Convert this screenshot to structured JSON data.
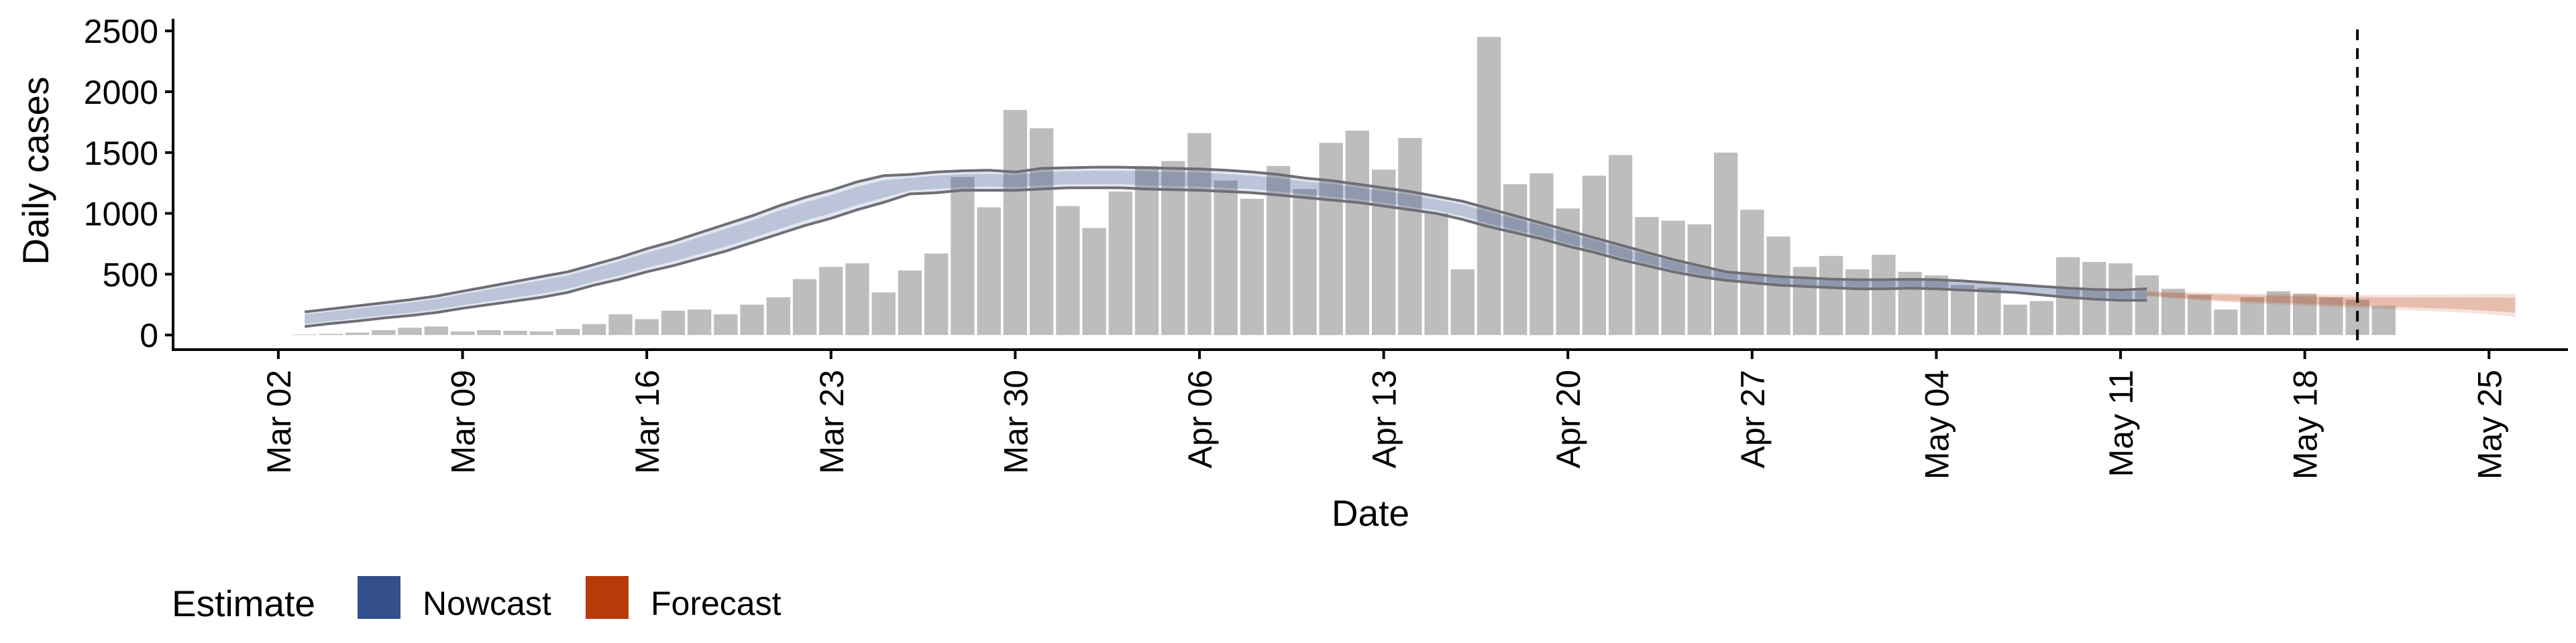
{
  "chart_data": {
    "type": "bar",
    "xlabel": "Date",
    "ylabel": "Daily cases",
    "xlim": [
      "2020-02-27",
      "2020-05-28"
    ],
    "ylim": [
      -120,
      2600
    ],
    "yticks": [
      0,
      500,
      1000,
      1500,
      2000,
      2500
    ],
    "xticks": [
      {
        "date": "2020-03-02",
        "label": "Mar 02"
      },
      {
        "date": "2020-03-09",
        "label": "Mar 09"
      },
      {
        "date": "2020-03-16",
        "label": "Mar 16"
      },
      {
        "date": "2020-03-23",
        "label": "Mar 23"
      },
      {
        "date": "2020-03-30",
        "label": "Mar 30"
      },
      {
        "date": "2020-04-06",
        "label": "Apr 06"
      },
      {
        "date": "2020-04-13",
        "label": "Apr 13"
      },
      {
        "date": "2020-04-20",
        "label": "Apr 20"
      },
      {
        "date": "2020-04-27",
        "label": "Apr 27"
      },
      {
        "date": "2020-05-04",
        "label": "May 04"
      },
      {
        "date": "2020-05-11",
        "label": "May 11"
      },
      {
        "date": "2020-05-18",
        "label": "May 18"
      },
      {
        "date": "2020-05-25",
        "label": "May 25"
      }
    ],
    "grid": false,
    "bars": {
      "start_date": "2020-03-03",
      "color": "#bdbdbd",
      "values": [
        5,
        10,
        20,
        40,
        60,
        70,
        30,
        40,
        35,
        30,
        50,
        90,
        170,
        130,
        200,
        210,
        170,
        250,
        310,
        460,
        560,
        590,
        350,
        530,
        670,
        1300,
        1050,
        1850,
        1700,
        1060,
        880,
        1180,
        1390,
        1430,
        1660,
        1270,
        1120,
        1390,
        1200,
        1580,
        1680,
        1360,
        1620,
        1000,
        540,
        2450,
        1240,
        1330,
        1040,
        1310,
        1480,
        970,
        940,
        910,
        1500,
        1030,
        810,
        560,
        650,
        540,
        660,
        520,
        490,
        410,
        390,
        250,
        280,
        640,
        600,
        590,
        490,
        380,
        330,
        210,
        310,
        360,
        340,
        310,
        290,
        240
      ]
    },
    "series": [
      {
        "name": "Nowcast",
        "color": "#334f8c",
        "start_date": "2020-03-03",
        "lower": [
          70,
          95,
          115,
          140,
          160,
          185,
          220,
          250,
          280,
          310,
          350,
          410,
          460,
          520,
          570,
          630,
          690,
          760,
          830,
          900,
          960,
          1030,
          1090,
          1160,
          1170,
          1190,
          1190,
          1190,
          1200,
          1210,
          1210,
          1210,
          1200,
          1195,
          1190,
          1180,
          1170,
          1150,
          1130,
          1110,
          1090,
          1060,
          1030,
          1000,
          950,
          890,
          840,
          790,
          730,
          680,
          620,
          570,
          520,
          480,
          450,
          430,
          410,
          400,
          390,
          380,
          380,
          385,
          380,
          370,
          360,
          350,
          330,
          310,
          295,
          285,
          285
        ],
        "upper": [
          190,
          215,
          240,
          265,
          290,
          320,
          360,
          400,
          440,
          480,
          520,
          580,
          640,
          710,
          770,
          840,
          910,
          980,
          1060,
          1130,
          1190,
          1260,
          1310,
          1320,
          1340,
          1350,
          1355,
          1340,
          1370,
          1375,
          1380,
          1380,
          1375,
          1370,
          1365,
          1355,
          1340,
          1320,
          1290,
          1270,
          1240,
          1210,
          1180,
          1140,
          1100,
          1040,
          980,
          920,
          860,
          800,
          740,
          680,
          620,
          570,
          520,
          500,
          480,
          470,
          460,
          455,
          455,
          458,
          455,
          445,
          430,
          415,
          400,
          385,
          375,
          370,
          380
        ]
      },
      {
        "name": "Forecast",
        "color": "#b73a0a",
        "start_date": "2020-05-12",
        "lower": [
          320,
          300,
          285,
          270,
          260,
          250,
          240,
          230,
          222,
          215,
          205,
          195,
          185,
          170,
          150
        ],
        "upper": [
          360,
          355,
          350,
          345,
          340,
          338,
          335,
          332,
          330,
          330,
          330,
          332,
          335,
          338,
          340
        ]
      }
    ],
    "vline": {
      "date": "2020-05-20",
      "style": "dashed"
    },
    "legend": {
      "title": "Estimate",
      "position": "bottom-left",
      "items": [
        {
          "label": "Nowcast",
          "color": "#334f8c"
        },
        {
          "label": "Forecast",
          "color": "#b73a0a"
        }
      ]
    }
  }
}
